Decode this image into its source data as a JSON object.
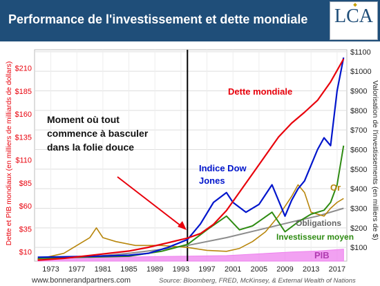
{
  "header": {
    "title": "Performance de l'investissement et dette mondiale",
    "logo_text": "LCA"
  },
  "colors": {
    "header_bg": "#1f4e79",
    "dette": "#e8000b",
    "dow": "#0015cc",
    "investisseur": "#2e8b12",
    "or": "#b8860b",
    "obligations": "#8c8c8c",
    "pib": "#ee82ee",
    "marker": "#000000"
  },
  "chart_data": {
    "type": "line",
    "ylabel_left": "Dette et PIB mondiaux (en milliers de milliards de dollars)",
    "ylabel_right": "Valorisation de l'investissements (en milliers de $)",
    "yticks_left": [
      "$10",
      "$35",
      "$60",
      "$85",
      "$110",
      "$135",
      "$160",
      "$185",
      "$210"
    ],
    "yticks_right": [
      "$100",
      "$200",
      "$300",
      "$400",
      "$500",
      "$600",
      "$700",
      "$800",
      "$900",
      "$1000",
      "$1100"
    ],
    "xticks": [
      "1973",
      "1977",
      "1981",
      "1985",
      "1989",
      "1993",
      "1997",
      "2001",
      "2005",
      "2009",
      "2013",
      "2017"
    ],
    "left_ylim": [
      0,
      230
    ],
    "right_ylim": [
      30,
      1110
    ],
    "xlim": [
      1970.5,
      2018.5
    ],
    "marker_year": 1994,
    "grid": true,
    "series": [
      {
        "name": "Dette mondiale",
        "axis": "left",
        "x": [
          1971,
          1975,
          1980,
          1985,
          1988,
          1991,
          1994,
          1996,
          1998,
          2000,
          2002,
          2004,
          2006,
          2008,
          2010,
          2012,
          2014,
          2016,
          2018
        ],
        "values": [
          1,
          3,
          7,
          11,
          15,
          20,
          25,
          30,
          40,
          55,
          75,
          95,
          115,
          135,
          150,
          162,
          175,
          195,
          220
        ]
      },
      {
        "name": "PIB",
        "axis": "left",
        "x": [
          1971,
          1980,
          1990,
          2000,
          2005,
          2010,
          2014,
          2018
        ],
        "values": [
          3,
          4,
          5,
          6,
          8,
          10,
          11,
          13
        ]
      },
      {
        "name": "Indice Dow Jones",
        "axis": "right",
        "x": [
          1971,
          1980,
          1985,
          1988,
          1991,
          1994,
          1996,
          1998,
          2000,
          2001,
          2003,
          2005,
          2007,
          2009,
          2010,
          2011,
          2012,
          2013,
          2014,
          2015,
          2016,
          2017,
          2018
        ],
        "values": [
          50,
          55,
          60,
          70,
          100,
          140,
          220,
          330,
          380,
          330,
          280,
          320,
          420,
          260,
          340,
          400,
          440,
          520,
          600,
          660,
          620,
          900,
          1070
        ]
      },
      {
        "name": "Investisseur moyen",
        "axis": "right",
        "x": [
          1971,
          1985,
          1990,
          1994,
          1997,
          2000,
          2002,
          2004,
          2007,
          2009,
          2011,
          2013,
          2015,
          2016,
          2017,
          2018
        ],
        "values": [
          45,
          55,
          80,
          115,
          190,
          260,
          190,
          210,
          280,
          180,
          230,
          270,
          290,
          330,
          420,
          620
        ]
      },
      {
        "name": "Or",
        "axis": "right",
        "x": [
          1971,
          1975,
          1979,
          1980,
          1981,
          1983,
          1986,
          1990,
          1994,
          1997,
          2000,
          2002,
          2004,
          2006,
          2008,
          2010,
          2011,
          2012,
          2013,
          2015,
          2016,
          2017,
          2018
        ],
        "values": [
          40,
          70,
          150,
          200,
          150,
          130,
          110,
          110,
          100,
          85,
          80,
          95,
          130,
          180,
          260,
          360,
          420,
          380,
          280,
          260,
          300,
          330,
          350
        ]
      },
      {
        "name": "Obligations",
        "axis": "right",
        "x": [
          1971,
          1980,
          1985,
          1990,
          1994,
          2000,
          2005,
          2010,
          2014,
          2018
        ],
        "values": [
          40,
          55,
          70,
          90,
          110,
          150,
          190,
          230,
          260,
          300
        ]
      }
    ],
    "annotation": "Moment où tout commence à basculer dans la folie douce"
  },
  "source": {
    "site": "www.bonnerandpartners.com",
    "text": "Source: Bloomberg, FRED, McKinsey, & External Wealth of Nations"
  }
}
